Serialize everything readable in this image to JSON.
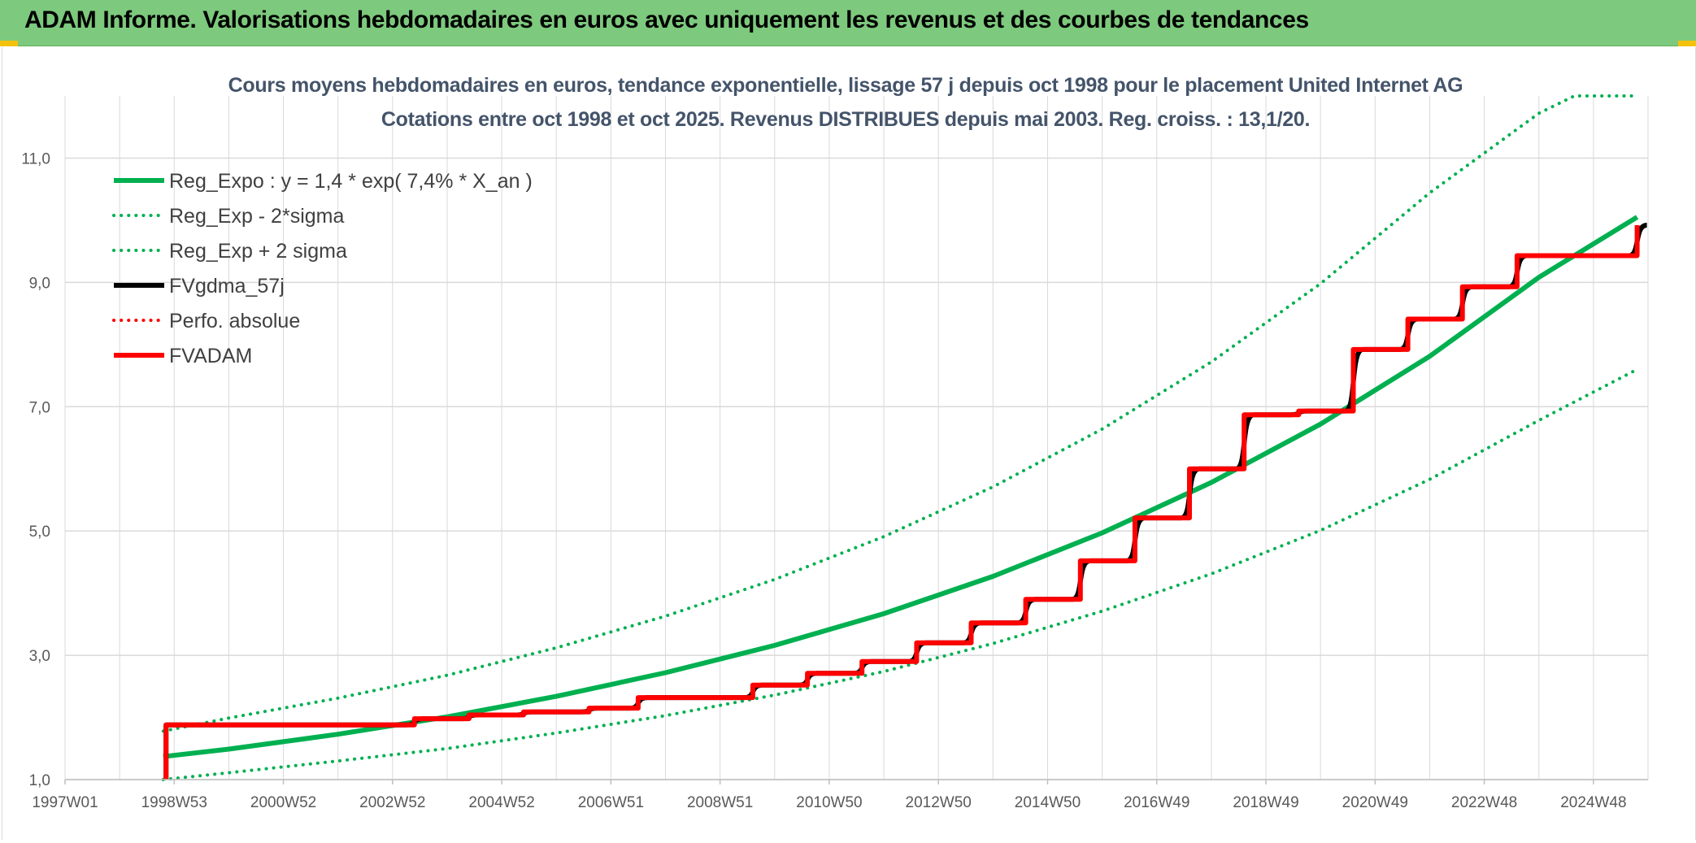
{
  "header": {
    "title": "ADAM Informe. Valorisations hebdomadaires en euros avec uniquement les revenus et des courbes de tendances"
  },
  "colors": {
    "header_bg": "#7dc97d",
    "corner_accent": "#f3c10e",
    "green": "#00b050",
    "red": "#ff0000",
    "black": "#000000",
    "grid": "#d9d9d9",
    "title_text": "#44546a"
  },
  "chart_data": {
    "type": "line",
    "title": "Cours moyens hebdomadaires en euros, tendance exponentielle, lissage 57 j depuis oct 1998 pour le placement United Internet AG",
    "subtitle": "Cotations entre oct 1998 et oct 2025. Revenus DISTRIBUES depuis mai 2003. Reg. croiss. : 13,1/20.",
    "xlabel": "",
    "ylabel": "",
    "x_axis": {
      "min_year": 1997.0,
      "max_year": 2026.0,
      "ticks": [
        {
          "label": "1997W01",
          "year": 1997.0
        },
        {
          "label": "1998W53",
          "year": 1999.0
        },
        {
          "label": "2000W52",
          "year": 2001.0
        },
        {
          "label": "2002W52",
          "year": 2003.0
        },
        {
          "label": "2004W52",
          "year": 2005.0
        },
        {
          "label": "2006W51",
          "year": 2007.0
        },
        {
          "label": "2008W51",
          "year": 2009.0
        },
        {
          "label": "2010W50",
          "year": 2011.0
        },
        {
          "label": "2012W50",
          "year": 2013.0
        },
        {
          "label": "2014W50",
          "year": 2015.0
        },
        {
          "label": "2016W49",
          "year": 2017.0
        },
        {
          "label": "2018W49",
          "year": 2019.0
        },
        {
          "label": "2020W49",
          "year": 2021.0
        },
        {
          "label": "2022W48",
          "year": 2023.0
        },
        {
          "label": "2024W48",
          "year": 2025.0
        }
      ]
    },
    "ylim": [
      1.0,
      12.0
    ],
    "y_ticks": [
      "1,0",
      "3,0",
      "5,0",
      "7,0",
      "9,0",
      "11,0"
    ],
    "y_tick_values": [
      1,
      3,
      5,
      7,
      9,
      11
    ],
    "grid": true,
    "legend_position": "top-left",
    "legend": [
      {
        "label": "Reg_Expo : y = 1,4 * exp( 7,4% *  X_an )",
        "color": "#00b050",
        "style": "solid",
        "width": 6
      },
      {
        "label": "Reg_Exp - 2*sigma",
        "color": "#00b050",
        "style": "dotted",
        "width": 4
      },
      {
        "label": "Reg_Exp + 2 sigma",
        "color": "#00b050",
        "style": "dotted",
        "width": 4
      },
      {
        "label": "FVgdma_57j",
        "color": "#000000",
        "style": "solid",
        "width": 6
      },
      {
        "label": "Perfo. absolue",
        "color": "#ff0000",
        "style": "dotted",
        "width": 4
      },
      {
        "label": "FVADAM",
        "color": "#ff0000",
        "style": "solid",
        "width": 6
      }
    ],
    "series": [
      {
        "name": "Reg_Expo : y = 1,4 * exp( 7,4% *  X_an )",
        "x": [
          1998.8,
          2000.0,
          2002.0,
          2004.0,
          2006.0,
          2008.0,
          2010.0,
          2012.0,
          2014.0,
          2016.0,
          2018.0,
          2020.0,
          2022.0,
          2024.0,
          2025.8
        ],
        "y": [
          1.37,
          1.49,
          1.73,
          2.01,
          2.34,
          2.72,
          3.16,
          3.67,
          4.27,
          4.97,
          5.78,
          6.72,
          7.81,
          9.08,
          10.05
        ]
      },
      {
        "name": "Reg_Exp - 2*sigma",
        "x": [
          1998.8,
          2000.0,
          2002.0,
          2004.0,
          2006.0,
          2008.0,
          2010.0,
          2012.0,
          2014.0,
          2016.0,
          2018.0,
          2020.0,
          2022.0,
          2024.0,
          2025.8
        ],
        "y": [
          1.0,
          1.11,
          1.3,
          1.5,
          1.75,
          2.03,
          2.36,
          2.74,
          3.19,
          3.71,
          4.31,
          5.01,
          5.83,
          6.78,
          7.6
        ]
      },
      {
        "name": "Reg_Exp + 2 sigma",
        "x": [
          1998.8,
          2000.0,
          2002.0,
          2004.0,
          2006.0,
          2008.0,
          2010.0,
          2012.0,
          2014.0,
          2016.0,
          2018.0,
          2020.0,
          2022.0,
          2024.0,
          2024.65,
          2025.8
        ],
        "y": [
          1.78,
          1.99,
          2.31,
          2.68,
          3.12,
          3.63,
          4.22,
          4.91,
          5.71,
          6.64,
          7.72,
          8.98,
          10.44,
          11.72,
          12.0,
          12.0
        ]
      },
      {
        "name": "FVgdma_57j",
        "x": [
          1998.85,
          1998.85,
          2003.4,
          2004.4,
          2005.4,
          2006.6,
          2007.5,
          2009.6,
          2010.6,
          2011.6,
          2012.6,
          2013.6,
          2014.6,
          2015.6,
          2016.6,
          2017.6,
          2018.6,
          2019.6,
          2020.6,
          2021.6,
          2022.6,
          2023.6,
          2025.8
        ],
        "y": [
          1.0,
          1.88,
          1.98,
          2.04,
          2.09,
          2.15,
          2.32,
          2.52,
          2.71,
          2.9,
          3.2,
          3.52,
          3.9,
          4.52,
          5.21,
          6.0,
          6.87,
          6.93,
          7.92,
          8.41,
          8.93,
          9.43,
          9.92
        ]
      },
      {
        "name": "Perfo. absolue",
        "x": [],
        "y": []
      },
      {
        "name": "FVADAM",
        "x": [
          1998.85,
          1998.85,
          2003.4,
          2004.4,
          2005.4,
          2006.6,
          2007.5,
          2009.6,
          2010.6,
          2011.6,
          2012.6,
          2013.6,
          2014.6,
          2015.6,
          2016.6,
          2017.6,
          2018.6,
          2019.6,
          2020.6,
          2021.6,
          2022.6,
          2023.6,
          2025.8
        ],
        "y": [
          1.0,
          1.88,
          1.98,
          2.04,
          2.09,
          2.15,
          2.32,
          2.52,
          2.71,
          2.9,
          3.2,
          3.52,
          3.9,
          4.52,
          5.21,
          6.0,
          6.87,
          6.93,
          7.92,
          8.41,
          8.93,
          9.43,
          9.92
        ]
      }
    ]
  }
}
